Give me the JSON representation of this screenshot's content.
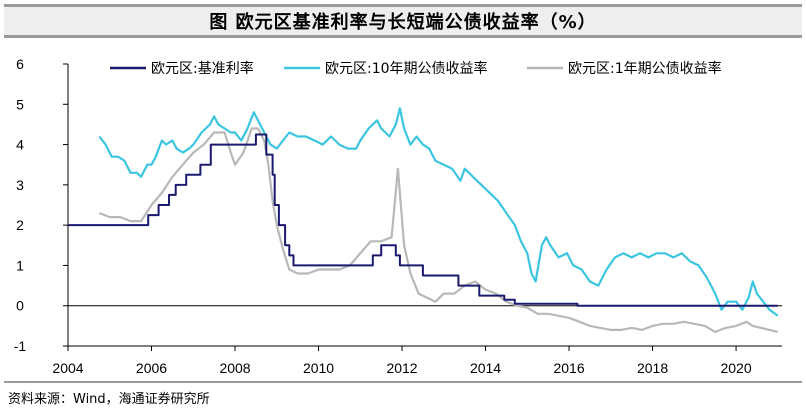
{
  "header": {
    "title": "图  欧元区基准利率与长短端公债收益率（%）"
  },
  "footer": {
    "source": "资料来源：Wind，海通证券研究所"
  },
  "chart_data": {
    "type": "line",
    "title": "图  欧元区基准利率与长短端公债收益率（%）",
    "xlabel": "",
    "ylabel": "",
    "xlim": [
      2004.0,
      2021.1
    ],
    "ylim": [
      -1,
      6
    ],
    "x_ticks": [
      2004,
      2006,
      2008,
      2010,
      2012,
      2014,
      2016,
      2018,
      2020
    ],
    "y_ticks": [
      -1,
      0,
      1,
      2,
      3,
      4,
      5,
      6
    ],
    "grid": false,
    "legend": "top",
    "series": [
      {
        "name": "欧元区:基准利率",
        "color": "#1a1a6e",
        "step": true,
        "points": [
          [
            2004.0,
            2.0
          ],
          [
            2005.92,
            2.25
          ],
          [
            2006.17,
            2.5
          ],
          [
            2006.42,
            2.75
          ],
          [
            2006.58,
            3.0
          ],
          [
            2006.83,
            3.25
          ],
          [
            2007.17,
            3.5
          ],
          [
            2007.42,
            4.0
          ],
          [
            2008.5,
            4.25
          ],
          [
            2008.75,
            3.75
          ],
          [
            2008.9,
            3.25
          ],
          [
            2008.95,
            2.5
          ],
          [
            2009.05,
            2.0
          ],
          [
            2009.2,
            1.5
          ],
          [
            2009.3,
            1.25
          ],
          [
            2009.4,
            1.0
          ],
          [
            2011.3,
            1.25
          ],
          [
            2011.5,
            1.5
          ],
          [
            2011.85,
            1.25
          ],
          [
            2011.95,
            1.0
          ],
          [
            2012.5,
            0.75
          ],
          [
            2013.35,
            0.5
          ],
          [
            2013.85,
            0.25
          ],
          [
            2014.45,
            0.15
          ],
          [
            2014.7,
            0.05
          ],
          [
            2016.2,
            0.0
          ],
          [
            2021.0,
            0.0
          ]
        ]
      },
      {
        "name": "欧元区:10年期公债收益率",
        "color": "#3cc5e0",
        "step": false,
        "points": [
          [
            2004.75,
            4.2
          ],
          [
            2004.9,
            4.0
          ],
          [
            2005.05,
            3.7
          ],
          [
            2005.2,
            3.7
          ],
          [
            2005.35,
            3.6
          ],
          [
            2005.5,
            3.3
          ],
          [
            2005.65,
            3.3
          ],
          [
            2005.75,
            3.2
          ],
          [
            2005.9,
            3.5
          ],
          [
            2006.0,
            3.5
          ],
          [
            2006.1,
            3.7
          ],
          [
            2006.25,
            4.1
          ],
          [
            2006.35,
            4.0
          ],
          [
            2006.5,
            4.1
          ],
          [
            2006.6,
            3.9
          ],
          [
            2006.75,
            3.8
          ],
          [
            2006.9,
            3.9
          ],
          [
            2007.0,
            4.0
          ],
          [
            2007.2,
            4.3
          ],
          [
            2007.4,
            4.5
          ],
          [
            2007.5,
            4.7
          ],
          [
            2007.6,
            4.5
          ],
          [
            2007.75,
            4.4
          ],
          [
            2007.9,
            4.3
          ],
          [
            2008.0,
            4.3
          ],
          [
            2008.15,
            4.1
          ],
          [
            2008.3,
            4.4
          ],
          [
            2008.45,
            4.8
          ],
          [
            2008.55,
            4.6
          ],
          [
            2008.7,
            4.3
          ],
          [
            2008.85,
            4.0
          ],
          [
            2009.0,
            3.9
          ],
          [
            2009.15,
            4.1
          ],
          [
            2009.3,
            4.3
          ],
          [
            2009.5,
            4.2
          ],
          [
            2009.7,
            4.2
          ],
          [
            2009.9,
            4.1
          ],
          [
            2010.1,
            4.0
          ],
          [
            2010.3,
            4.2
          ],
          [
            2010.5,
            4.0
          ],
          [
            2010.7,
            3.9
          ],
          [
            2010.9,
            3.9
          ],
          [
            2011.0,
            4.1
          ],
          [
            2011.2,
            4.4
          ],
          [
            2011.4,
            4.6
          ],
          [
            2011.5,
            4.4
          ],
          [
            2011.7,
            4.2
          ],
          [
            2011.85,
            4.5
          ],
          [
            2011.95,
            4.9
          ],
          [
            2012.05,
            4.4
          ],
          [
            2012.2,
            4.0
          ],
          [
            2012.35,
            4.2
          ],
          [
            2012.5,
            4.0
          ],
          [
            2012.65,
            3.9
          ],
          [
            2012.8,
            3.6
          ],
          [
            2013.0,
            3.5
          ],
          [
            2013.2,
            3.4
          ],
          [
            2013.4,
            3.1
          ],
          [
            2013.5,
            3.4
          ],
          [
            2013.7,
            3.2
          ],
          [
            2013.9,
            3.0
          ],
          [
            2014.1,
            2.8
          ],
          [
            2014.3,
            2.6
          ],
          [
            2014.5,
            2.3
          ],
          [
            2014.7,
            2.0
          ],
          [
            2014.85,
            1.6
          ],
          [
            2015.0,
            1.3
          ],
          [
            2015.1,
            0.8
          ],
          [
            2015.2,
            0.6
          ],
          [
            2015.35,
            1.5
          ],
          [
            2015.45,
            1.7
          ],
          [
            2015.55,
            1.5
          ],
          [
            2015.75,
            1.2
          ],
          [
            2015.95,
            1.3
          ],
          [
            2016.1,
            1.0
          ],
          [
            2016.3,
            0.9
          ],
          [
            2016.5,
            0.6
          ],
          [
            2016.7,
            0.5
          ],
          [
            2016.9,
            0.9
          ],
          [
            2017.1,
            1.2
          ],
          [
            2017.3,
            1.3
          ],
          [
            2017.5,
            1.2
          ],
          [
            2017.7,
            1.3
          ],
          [
            2017.9,
            1.2
          ],
          [
            2018.1,
            1.3
          ],
          [
            2018.3,
            1.3
          ],
          [
            2018.5,
            1.2
          ],
          [
            2018.7,
            1.3
          ],
          [
            2018.9,
            1.1
          ],
          [
            2019.1,
            1.0
          ],
          [
            2019.3,
            0.7
          ],
          [
            2019.5,
            0.3
          ],
          [
            2019.65,
            -0.1
          ],
          [
            2019.8,
            0.1
          ],
          [
            2020.0,
            0.1
          ],
          [
            2020.15,
            -0.1
          ],
          [
            2020.3,
            0.2
          ],
          [
            2020.4,
            0.6
          ],
          [
            2020.5,
            0.3
          ],
          [
            2020.65,
            0.1
          ],
          [
            2020.8,
            -0.1
          ],
          [
            2021.0,
            -0.25
          ]
        ]
      },
      {
        "name": "欧元区:1年期公债收益率",
        "color": "#b8b8b8",
        "step": false,
        "points": [
          [
            2004.75,
            2.3
          ],
          [
            2005.0,
            2.2
          ],
          [
            2005.25,
            2.2
          ],
          [
            2005.5,
            2.1
          ],
          [
            2005.75,
            2.1
          ],
          [
            2006.0,
            2.5
          ],
          [
            2006.25,
            2.8
          ],
          [
            2006.5,
            3.2
          ],
          [
            2006.75,
            3.5
          ],
          [
            2007.0,
            3.8
          ],
          [
            2007.25,
            4.0
          ],
          [
            2007.5,
            4.3
          ],
          [
            2007.75,
            4.3
          ],
          [
            2007.9,
            3.8
          ],
          [
            2008.0,
            3.5
          ],
          [
            2008.2,
            3.8
          ],
          [
            2008.4,
            4.4
          ],
          [
            2008.55,
            4.4
          ],
          [
            2008.7,
            4.1
          ],
          [
            2008.8,
            3.5
          ],
          [
            2008.9,
            2.6
          ],
          [
            2009.0,
            2.0
          ],
          [
            2009.15,
            1.4
          ],
          [
            2009.3,
            0.9
          ],
          [
            2009.5,
            0.8
          ],
          [
            2009.75,
            0.8
          ],
          [
            2010.0,
            0.9
          ],
          [
            2010.25,
            0.9
          ],
          [
            2010.5,
            0.9
          ],
          [
            2010.75,
            1.0
          ],
          [
            2011.0,
            1.3
          ],
          [
            2011.25,
            1.6
          ],
          [
            2011.5,
            1.6
          ],
          [
            2011.75,
            1.7
          ],
          [
            2011.9,
            3.4
          ],
          [
            2012.05,
            1.5
          ],
          [
            2012.2,
            0.8
          ],
          [
            2012.4,
            0.3
          ],
          [
            2012.6,
            0.2
          ],
          [
            2012.8,
            0.1
          ],
          [
            2013.0,
            0.3
          ],
          [
            2013.25,
            0.3
          ],
          [
            2013.5,
            0.5
          ],
          [
            2013.75,
            0.6
          ],
          [
            2014.0,
            0.4
          ],
          [
            2014.25,
            0.3
          ],
          [
            2014.5,
            0.1
          ],
          [
            2014.75,
            0.0
          ],
          [
            2015.0,
            -0.05
          ],
          [
            2015.25,
            -0.2
          ],
          [
            2015.5,
            -0.2
          ],
          [
            2015.75,
            -0.25
          ],
          [
            2016.0,
            -0.3
          ],
          [
            2016.25,
            -0.4
          ],
          [
            2016.5,
            -0.5
          ],
          [
            2016.75,
            -0.55
          ],
          [
            2017.0,
            -0.6
          ],
          [
            2017.25,
            -0.6
          ],
          [
            2017.5,
            -0.55
          ],
          [
            2017.75,
            -0.6
          ],
          [
            2018.0,
            -0.5
          ],
          [
            2018.25,
            -0.45
          ],
          [
            2018.5,
            -0.45
          ],
          [
            2018.75,
            -0.4
          ],
          [
            2019.0,
            -0.45
          ],
          [
            2019.25,
            -0.5
          ],
          [
            2019.5,
            -0.65
          ],
          [
            2019.75,
            -0.55
          ],
          [
            2020.0,
            -0.5
          ],
          [
            2020.25,
            -0.4
          ],
          [
            2020.4,
            -0.5
          ],
          [
            2020.6,
            -0.55
          ],
          [
            2020.8,
            -0.6
          ],
          [
            2021.0,
            -0.65
          ]
        ]
      }
    ]
  }
}
